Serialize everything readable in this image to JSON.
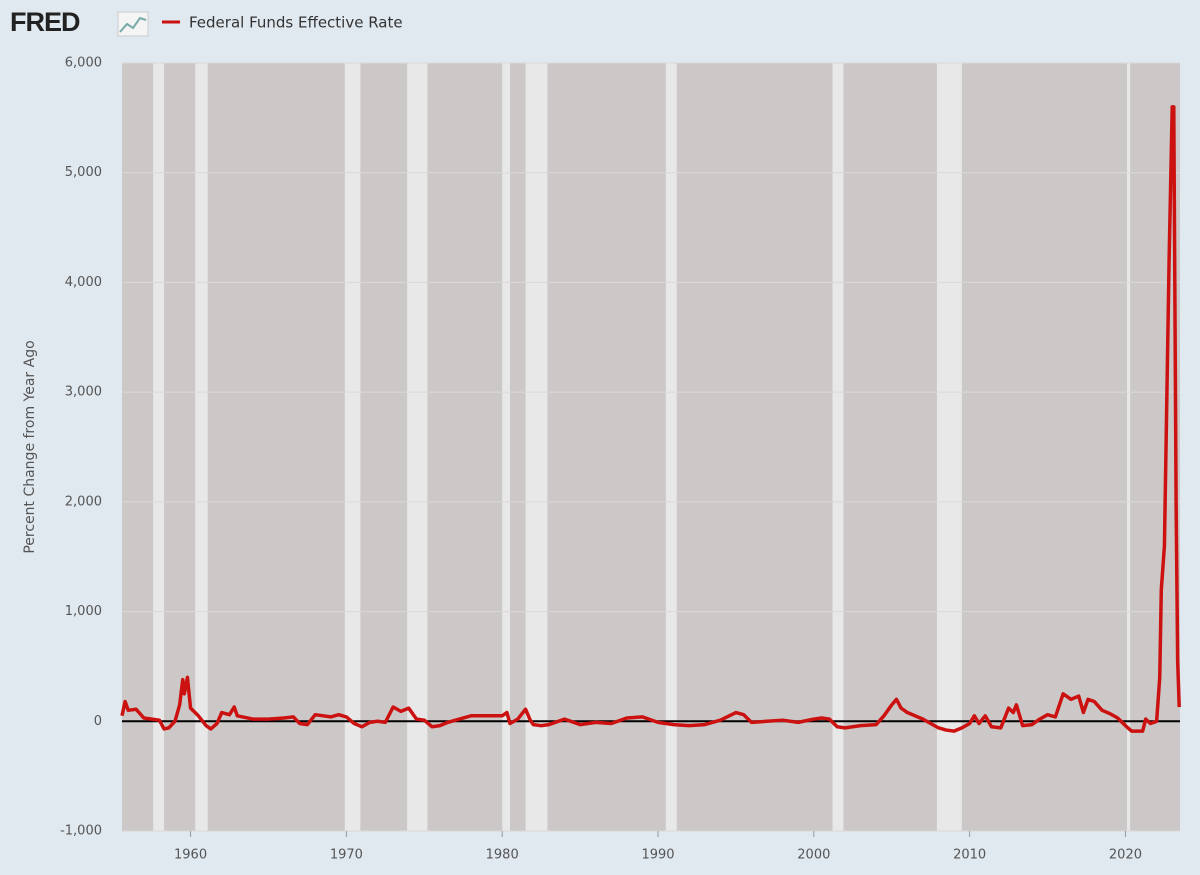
{
  "logo": "FRED",
  "chart_data": {
    "type": "line",
    "y_label": "Percent Change from Year Ago",
    "xlim": [
      1955.6,
      2023.5
    ],
    "xticks": [
      1960,
      1970,
      1980,
      1990,
      2000,
      2010,
      2020
    ],
    "ylim": [
      -1000,
      6000
    ],
    "yticks": [
      {
        "value": -1000,
        "label": "-1,000"
      },
      0,
      {
        "value": 1000,
        "label": "1,000"
      },
      {
        "value": 2000,
        "label": "2,000"
      },
      {
        "value": 3000,
        "label": "3,000"
      },
      {
        "value": 4000,
        "label": "4,000"
      },
      {
        "value": 5000,
        "label": "5,000"
      },
      {
        "value": 6000,
        "label": "6,000"
      }
    ],
    "grid": true,
    "recessions": [
      [
        1957.6,
        1958.3
      ],
      [
        1960.3,
        1961.1
      ],
      [
        1969.9,
        1970.9
      ],
      [
        1973.9,
        1975.2
      ],
      [
        1980.0,
        1980.5
      ],
      [
        1981.5,
        1982.9
      ],
      [
        1990.5,
        1991.2
      ],
      [
        2001.2,
        2001.9
      ],
      [
        2007.9,
        2009.5
      ],
      [
        2020.1,
        2020.3
      ]
    ],
    "x": [
      1955.6,
      1955.8,
      1956,
      1956.5,
      1957,
      1957.5,
      1958,
      1958.3,
      1958.6,
      1959,
      1959.3,
      1959.5,
      1959.6,
      1959.8,
      1960,
      1960.5,
      1961,
      1961.3,
      1961.7,
      1962,
      1962.5,
      1962.8,
      1963,
      1964,
      1965,
      1966,
      1966.6,
      1967,
      1967.5,
      1968,
      1969,
      1969.5,
      1970,
      1970.5,
      1971,
      1971.5,
      1972,
      1972.5,
      1973,
      1973.5,
      1974,
      1974.5,
      1975,
      1975.5,
      1976,
      1976.5,
      1977,
      1978,
      1979,
      1980,
      1980.3,
      1980.5,
      1981,
      1981.5,
      1981.8,
      1982,
      1982.5,
      1983,
      1984,
      1985,
      1986,
      1987,
      1988,
      1989,
      1990,
      1991,
      1992,
      1993,
      1994,
      1995,
      1995.5,
      1996,
      1997,
      1998,
      1999,
      2000,
      2000.5,
      2001,
      2001.5,
      2002,
      2003,
      2004,
      2004.5,
      2005,
      2005.3,
      2005.6,
      2006,
      2007,
      2008,
      2008.5,
      2009,
      2009.5,
      2010,
      2010.3,
      2010.6,
      2011,
      2011.4,
      2012,
      2012.5,
      2012.8,
      2013,
      2013.4,
      2014,
      2014.5,
      2015,
      2015.5,
      2016,
      2016.5,
      2017,
      2017.3,
      2017.6,
      2018,
      2018.5,
      2019,
      2019.5,
      2020,
      2020.4,
      2020.8,
      2021.1,
      2021.3,
      2021.6,
      2022,
      2022.2,
      2022.3,
      2022.5,
      2022.8,
      2023,
      2023.1,
      2023.25,
      2023.35,
      2023.45
    ],
    "series": [
      {
        "name": "Federal Funds Effective Rate",
        "color": "#cc1111",
        "values": [
          50,
          180,
          100,
          110,
          30,
          20,
          10,
          -70,
          -60,
          0,
          150,
          380,
          250,
          400,
          120,
          50,
          -40,
          -70,
          -20,
          80,
          60,
          130,
          50,
          20,
          20,
          30,
          40,
          -20,
          -30,
          60,
          40,
          60,
          40,
          -20,
          -50,
          -10,
          0,
          -10,
          130,
          90,
          120,
          20,
          10,
          -50,
          -40,
          -10,
          10,
          50,
          50,
          50,
          80,
          -20,
          20,
          110,
          10,
          -30,
          -40,
          -30,
          20,
          -30,
          -10,
          -20,
          30,
          40,
          -10,
          -30,
          -40,
          -30,
          10,
          80,
          60,
          -10,
          0,
          10,
          -10,
          20,
          30,
          20,
          -50,
          -60,
          -40,
          -30,
          50,
          150,
          200,
          120,
          80,
          20,
          -60,
          -80,
          -90,
          -60,
          -20,
          50,
          -20,
          50,
          -50,
          -60,
          120,
          80,
          150,
          -40,
          -30,
          20,
          60,
          40,
          250,
          200,
          230,
          80,
          200,
          180,
          100,
          70,
          30,
          -40,
          -90,
          -90,
          -90,
          20,
          -20,
          0,
          400,
          1200,
          1600,
          4200,
          5600,
          5600,
          2000,
          550,
          130
        ]
      }
    ]
  }
}
